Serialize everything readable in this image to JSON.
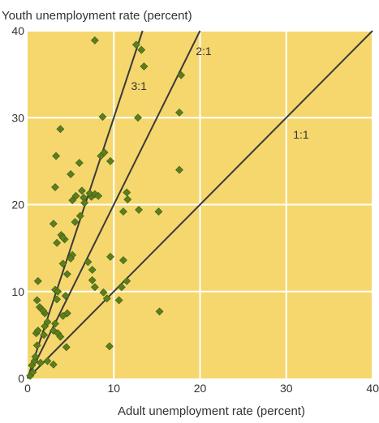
{
  "chart_data": {
    "type": "scatter",
    "title": "",
    "ylabel": "Youth unemployment rate (percent)",
    "xlabel": "Adult unemployment rate (percent)",
    "xlim": [
      0,
      40
    ],
    "ylim": [
      0,
      40
    ],
    "x_ticks": [
      "0",
      "10",
      "20",
      "30",
      "40"
    ],
    "y_ticks": [
      "0",
      "10",
      "20",
      "30",
      "40"
    ],
    "grid": true,
    "colors": {
      "plot_background": "#F5D76E",
      "grid": "#ffffff",
      "marker": "#5B7F1E",
      "marker_edge": "#3E5A12",
      "reference_line": "#3a3a3a"
    },
    "reference_lines": [
      {
        "label": "1:1",
        "slope": 1,
        "label_at": [
          30.8,
          27.6
        ]
      },
      {
        "label": "2:1",
        "slope": 2,
        "label_at": [
          19.5,
          37.2
        ]
      },
      {
        "label": "3:1",
        "slope": 3,
        "label_at": [
          12.0,
          33.2
        ]
      }
    ],
    "series": [
      {
        "points": [
          [
            0.3,
            0.3
          ],
          [
            0.6,
            0.7
          ],
          [
            0.5,
            1.5
          ],
          [
            0.8,
            2.0
          ],
          [
            0.9,
            2.5
          ],
          [
            1.1,
            3.8
          ],
          [
            1.0,
            5.2
          ],
          [
            1.2,
            5.5
          ],
          [
            1.5,
            1.8
          ],
          [
            1.9,
            5.0
          ],
          [
            2.0,
            6.0
          ],
          [
            2.3,
            6.5
          ],
          [
            2.0,
            7.5
          ],
          [
            1.4,
            8.2
          ],
          [
            1.1,
            9.0
          ],
          [
            1.6,
            8.0
          ],
          [
            1.8,
            7.8
          ],
          [
            1.2,
            11.2
          ],
          [
            2.3,
            2.0
          ],
          [
            3.0,
            1.6
          ],
          [
            3.0,
            5.5
          ],
          [
            3.2,
            6.3
          ],
          [
            3.5,
            5.2
          ],
          [
            3.8,
            4.8
          ],
          [
            4.1,
            7.2
          ],
          [
            4.5,
            3.6
          ],
          [
            3.4,
            9.1
          ],
          [
            3.2,
            10.2
          ],
          [
            3.5,
            10.0
          ],
          [
            4.6,
            7.5
          ],
          [
            4.4,
            9.5
          ],
          [
            4.1,
            13.2
          ],
          [
            4.6,
            12.0
          ],
          [
            5.2,
            14.2
          ],
          [
            4.3,
            16.0
          ],
          [
            3.9,
            16.5
          ],
          [
            3.4,
            15.6
          ],
          [
            4.1,
            16.2
          ],
          [
            3.0,
            17.8
          ],
          [
            5.0,
            13.8
          ],
          [
            5.5,
            18.0
          ],
          [
            6.1,
            18.7
          ],
          [
            5.2,
            20.5
          ],
          [
            5.6,
            21.0
          ],
          [
            6.5,
            20.8
          ],
          [
            6.3,
            21.6
          ],
          [
            7.4,
            20.9
          ],
          [
            6.6,
            20.2
          ],
          [
            7.2,
            21.3
          ],
          [
            7.8,
            21.2
          ],
          [
            8.2,
            21.0
          ],
          [
            3.2,
            22.0
          ],
          [
            5.0,
            23.5
          ],
          [
            6.0,
            24.8
          ],
          [
            3.3,
            25.6
          ],
          [
            3.8,
            28.7
          ],
          [
            8.5,
            25.6
          ],
          [
            8.9,
            26.0
          ],
          [
            9.6,
            25.0
          ],
          [
            8.7,
            30.1
          ],
          [
            7.8,
            38.9
          ],
          [
            12.6,
            38.4
          ],
          [
            13.2,
            37.8
          ],
          [
            13.5,
            35.9
          ],
          [
            12.8,
            30.0
          ],
          [
            17.8,
            34.9
          ],
          [
            17.6,
            30.6
          ],
          [
            17.6,
            24.0
          ],
          [
            11.5,
            21.4
          ],
          [
            11.6,
            20.6
          ],
          [
            11.1,
            19.2
          ],
          [
            12.9,
            19.4
          ],
          [
            15.2,
            19.2
          ],
          [
            7.0,
            13.4
          ],
          [
            7.5,
            12.5
          ],
          [
            7.5,
            11.3
          ],
          [
            7.8,
            10.5
          ],
          [
            9.6,
            14.0
          ],
          [
            11.1,
            13.6
          ],
          [
            11.5,
            11.2
          ],
          [
            10.9,
            10.5
          ],
          [
            8.8,
            9.9
          ],
          [
            9.2,
            9.2
          ],
          [
            10.6,
            9.0
          ],
          [
            9.5,
            3.7
          ],
          [
            15.3,
            7.7
          ]
        ]
      }
    ]
  }
}
